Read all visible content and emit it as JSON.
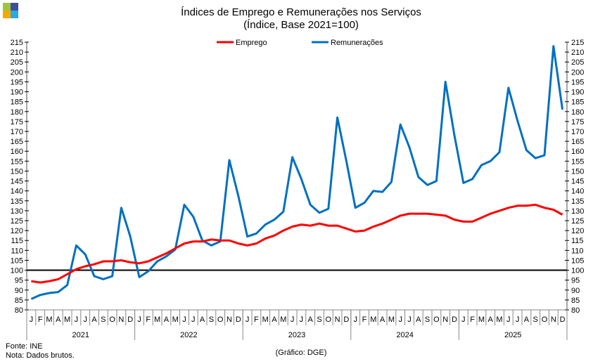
{
  "chart_data": {
    "type": "line",
    "title": "Índices de Emprego e Remunerações nos Serviços",
    "subtitle": "(Índice, Base 2021=100)",
    "ylim": [
      80,
      215
    ],
    "ytick_step": 5,
    "reference_line": 100,
    "years": [
      "2021",
      "2022",
      "2023",
      "2024",
      "2025"
    ],
    "month_labels": [
      "J",
      "F",
      "M",
      "A",
      "M",
      "J",
      "J",
      "A",
      "S",
      "O",
      "N",
      "D"
    ],
    "legend_position": "top-center",
    "series": [
      {
        "name": "Emprego",
        "color": "#ff0000",
        "values": [
          94.5,
          93.8,
          94.5,
          95.5,
          98,
          100.5,
          102,
          103,
          104.5,
          104.5,
          105,
          104,
          103.5,
          104.5,
          106.5,
          108.5,
          111,
          113.5,
          114.5,
          114.5,
          115.5,
          115,
          115,
          113.5,
          112.5,
          113.5,
          116,
          117.5,
          120,
          122,
          123,
          122.5,
          123.5,
          122.5,
          122.5,
          121,
          119.5,
          120,
          122,
          123.5,
          125.5,
          127.5,
          128.5,
          128.5,
          128.5,
          128,
          127.5,
          125.5,
          124.5,
          124.5,
          126.5,
          128.5,
          130,
          131.5,
          132.5,
          132.5,
          133,
          131.5,
          130.5,
          128
        ]
      },
      {
        "name": "Remunerações",
        "color": "#0070c0",
        "values": [
          85.5,
          87.5,
          88.5,
          89,
          92.5,
          112.5,
          108,
          97,
          95.5,
          97,
          131.5,
          117,
          96.5,
          99.5,
          104.5,
          107,
          110.5,
          133,
          127,
          115,
          112.5,
          114.5,
          155.5,
          137.5,
          117,
          118.5,
          123,
          125.5,
          129.5,
          157,
          146,
          133,
          129,
          131,
          177,
          155,
          131.5,
          134,
          140,
          139.5,
          144.5,
          173.5,
          162,
          147,
          143,
          145,
          195,
          168,
          144,
          146,
          153,
          155,
          159.5,
          192,
          175.5,
          160.5,
          156.5,
          158,
          213,
          181
        ]
      }
    ]
  },
  "footer": {
    "source": "Fonte: INE",
    "note": "Nota: Dados brutos.",
    "credit": "(Gráfico: DGE)"
  }
}
